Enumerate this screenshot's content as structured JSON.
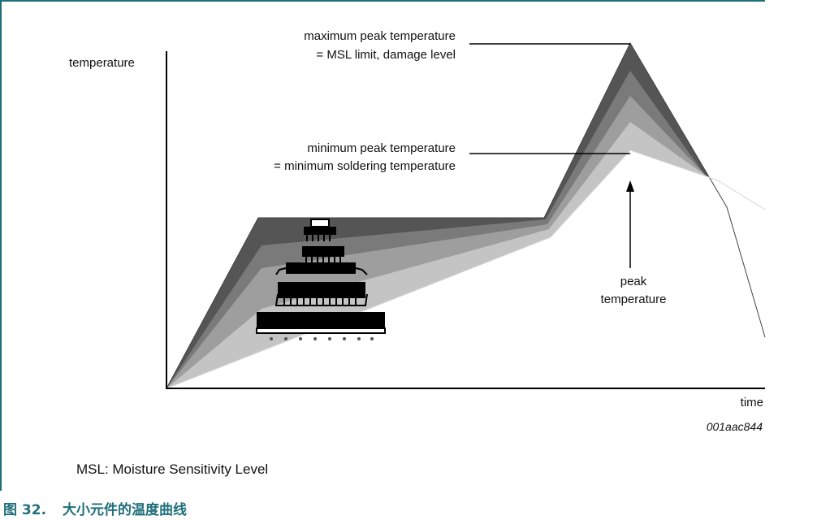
{
  "diagram": {
    "y_axis_label": "temperature",
    "x_axis_label": "time",
    "callout_max_line1": "maximum peak temperature",
    "callout_max_line2": "= MSL limit, damage level",
    "callout_min_line1": "minimum peak temperature",
    "callout_min_line2": "= minimum soldering temperature",
    "peak_label_line1": "peak",
    "peak_label_line2": "temperature",
    "figure_code": "001aac844",
    "curve_colors": [
      "#555555",
      "#7a7a7a",
      "#9e9e9e",
      "#c4c4c4",
      "#e6e6e6"
    ]
  },
  "note": "MSL: Moisture Sensitivity Level",
  "caption": {
    "number": "图 32.",
    "title": "大小元件的温度曲线"
  }
}
